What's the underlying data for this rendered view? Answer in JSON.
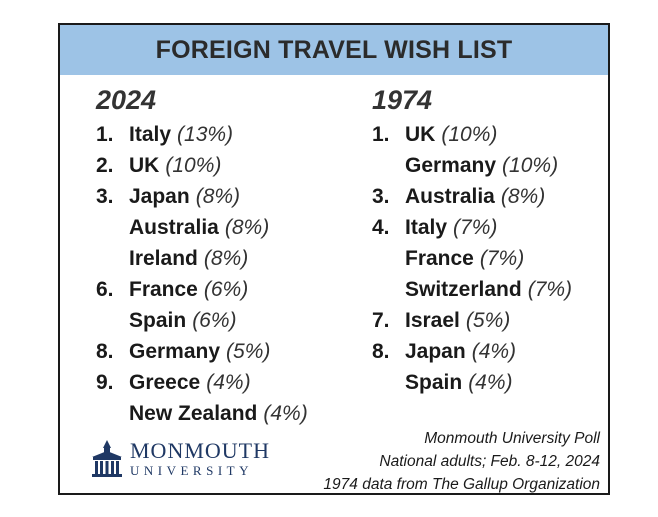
{
  "title": "FOREIGN TRAVEL WISH LIST",
  "columns": [
    {
      "year": "2024",
      "entries": [
        {
          "rank": "1.",
          "country": "Italy",
          "percent": "(13%)"
        },
        {
          "rank": "2.",
          "country": "UK",
          "percent": "(10%)"
        },
        {
          "rank": "3.",
          "country": "Japan",
          "percent": "(8%)"
        },
        {
          "rank": "",
          "country": "Australia",
          "percent": "(8%)"
        },
        {
          "rank": "",
          "country": "Ireland",
          "percent": "(8%)"
        },
        {
          "rank": "6.",
          "country": "France",
          "percent": "(6%)"
        },
        {
          "rank": "",
          "country": "Spain",
          "percent": "(6%)"
        },
        {
          "rank": "8.",
          "country": "Germany",
          "percent": "(5%)"
        },
        {
          "rank": "9.",
          "country": "Greece",
          "percent": "(4%)"
        },
        {
          "rank": "",
          "country": "New Zealand",
          "percent": "(4%)"
        }
      ]
    },
    {
      "year": "1974",
      "entries": [
        {
          "rank": "1.",
          "country": "UK",
          "percent": "(10%)"
        },
        {
          "rank": "",
          "country": "Germany",
          "percent": "(10%)"
        },
        {
          "rank": "3.",
          "country": "Australia",
          "percent": "(8%)"
        },
        {
          "rank": "4.",
          "country": "Italy",
          "percent": "(7%)"
        },
        {
          "rank": "",
          "country": "France",
          "percent": "(7%)"
        },
        {
          "rank": "",
          "country": "Switzerland",
          "percent": "(7%)"
        },
        {
          "rank": "7.",
          "country": "Israel",
          "percent": "(5%)"
        },
        {
          "rank": "8.",
          "country": "Japan",
          "percent": "(4%)"
        },
        {
          "rank": "",
          "country": "Spain",
          "percent": "(4%)"
        }
      ]
    }
  ],
  "logo": {
    "name": "MONMOUTH",
    "subtitle": "UNIVERSITY",
    "icon": "university-building-icon"
  },
  "source_lines": [
    "Monmouth University Poll",
    "National adults; Feb. 8-12, 2024",
    "1974 data from The Gallup Organization"
  ],
  "colors": {
    "title_band": "#9dc3e6",
    "logo": "#1f3864",
    "border": "#1a1a1a"
  }
}
